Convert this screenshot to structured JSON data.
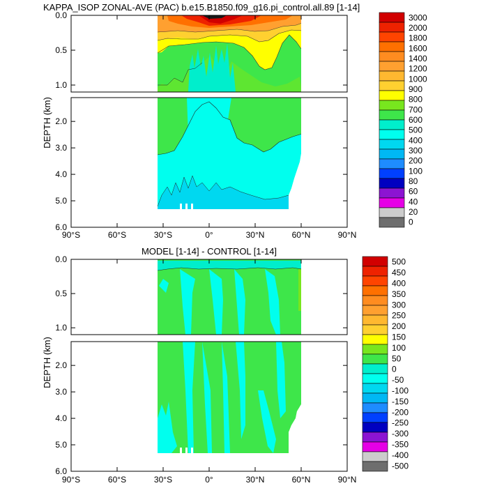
{
  "chart_data": [
    {
      "type": "heatmap",
      "title": "KAPPA_ISOP ZONAL-AVE (PAC) b.e15.B1850.f09_g16.pi_control.all.89 [1-14]",
      "ylabel": "DEPTH (km)",
      "x_ticks": [
        "90°S",
        "60°S",
        "30°S",
        "0°",
        "30°N",
        "60°N",
        "90°N"
      ],
      "xlim": [
        -90,
        90
      ],
      "upper_panel": {
        "ylim": [
          0.0,
          1.1
        ],
        "y_ticks": [
          "0.0",
          "0.5",
          "1.0"
        ]
      },
      "lower_panel": {
        "ylim": [
          1.1,
          6.0
        ],
        "y_ticks": [
          "2.0",
          "3.0",
          "4.0",
          "5.0",
          "6.0"
        ]
      },
      "colorbar_labels": [
        "3000",
        "2000",
        "1800",
        "1600",
        "1400",
        "1200",
        "1000",
        "900",
        "800",
        "700",
        "600",
        "500",
        "400",
        "300",
        "200",
        "100",
        "80",
        "60",
        "40",
        "20",
        "0"
      ],
      "colorbar_colors": [
        "#d10000",
        "#ee2200",
        "#ff4400",
        "#ff7000",
        "#ff8c20",
        "#ffa030",
        "#ffb830",
        "#ffd030",
        "#ffff00",
        "#78e61e",
        "#3ee64a",
        "#00eecc",
        "#00ffee",
        "#00d8f0",
        "#00b8f4",
        "#1e8cff",
        "#0040ff",
        "#0000c0",
        "#8c14d2",
        "#e600e6",
        "#cccccc",
        "#6e6e6e"
      ]
    },
    {
      "type": "heatmap",
      "title": "MODEL [1-14] - CONTROL [1-14]",
      "ylabel": "DEPTH (km)",
      "x_ticks": [
        "90°S",
        "60°S",
        "30°S",
        "0°",
        "30°N",
        "60°N",
        "90°N"
      ],
      "xlim": [
        -90,
        90
      ],
      "upper_panel": {
        "ylim": [
          0.0,
          1.1
        ],
        "y_ticks": [
          "0.0",
          "0.5",
          "1.0"
        ]
      },
      "lower_panel": {
        "ylim": [
          1.1,
          6.0
        ],
        "y_ticks": [
          "2.0",
          "3.0",
          "4.0",
          "5.0",
          "6.0"
        ]
      },
      "colorbar_labels": [
        "500",
        "450",
        "400",
        "350",
        "300",
        "250",
        "200",
        "150",
        "100",
        "50",
        "0",
        "-50",
        "-100",
        "-150",
        "-200",
        "-250",
        "-300",
        "-350",
        "-400",
        "-500"
      ],
      "colorbar_colors": [
        "#d10000",
        "#ee2200",
        "#ff4400",
        "#ff7000",
        "#ff8c20",
        "#ffa030",
        "#ffb830",
        "#ffd030",
        "#ffff00",
        "#78e61e",
        "#3ee64a",
        "#00eecc",
        "#00ffee",
        "#00d8f0",
        "#00b8f4",
        "#1e8cff",
        "#0040ff",
        "#0000c0",
        "#8c14d2",
        "#e600e6",
        "#cccccc",
        "#6e6e6e"
      ]
    }
  ]
}
